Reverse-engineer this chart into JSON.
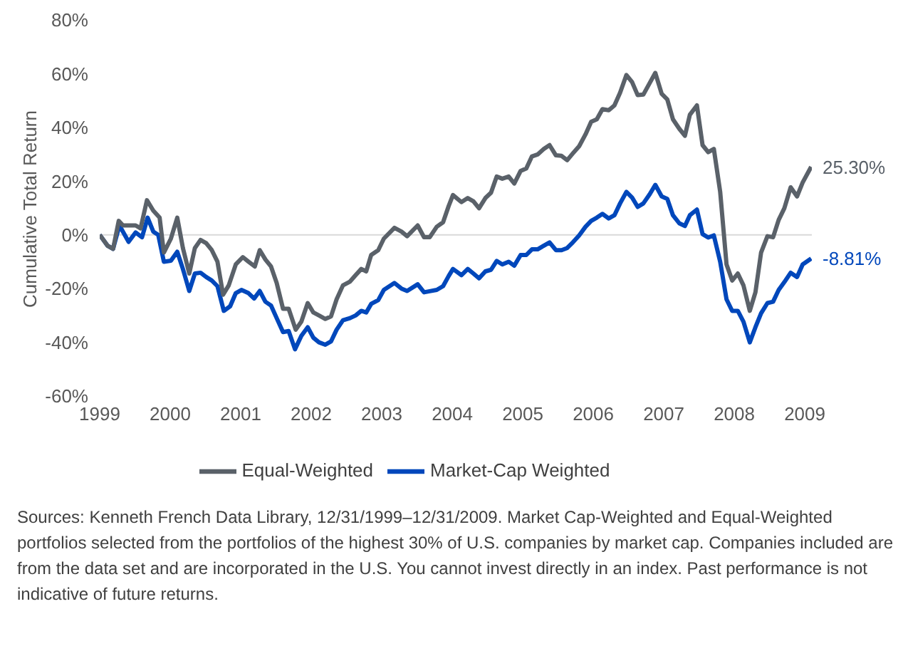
{
  "chart_data": {
    "type": "line",
    "ylabel": "Cumulative Total Return",
    "xlim": [
      1999,
      2009.1
    ],
    "xticks": [
      1999,
      2000,
      2001,
      2002,
      2003,
      2004,
      2005,
      2006,
      2007,
      2008,
      2009
    ],
    "ylim": [
      -60,
      80
    ],
    "yticks": [
      {
        "value": -60,
        "label": "-60%"
      },
      {
        "value": -40,
        "label": "-40%"
      },
      {
        "value": -20,
        "label": "-20%"
      },
      {
        "value": 0,
        "label": "0%"
      },
      {
        "value": 20,
        "label": "20%"
      },
      {
        "value": 40,
        "label": "40%"
      },
      {
        "value": 60,
        "label": "60%"
      },
      {
        "value": 80,
        "label": "80%"
      }
    ],
    "grid": false,
    "legend": "bottom",
    "marker": "none",
    "line_style": "solid",
    "ref_lines": [
      {
        "axis": "y",
        "value": 0,
        "color": "#d9d9d9"
      }
    ],
    "series": [
      {
        "name": "Market-Cap Weighted",
        "color": "#0047bb",
        "x": [
          1999,
          1999.11,
          1999.19,
          1999.28,
          1999.41,
          1999.51,
          1999.6,
          1999.68,
          1999.76,
          1999.83,
          1999.91,
          2000.01,
          2000.1,
          2000.18,
          2000.27,
          2000.35,
          2000.43,
          2000.51,
          2000.59,
          2000.67,
          2000.76,
          2000.85,
          2000.93,
          2001.01,
          2001.11,
          2001.19,
          2001.27,
          2001.35,
          2001.43,
          2001.51,
          2001.6,
          2001.68,
          2001.77,
          2001.86,
          2001.95,
          2002.03,
          2002.11,
          2002.2,
          2002.28,
          2002.36,
          2002.45,
          2002.55,
          2002.63,
          2002.71,
          2002.78,
          2002.85,
          2002.95,
          2003.03,
          2003.18,
          2003.28,
          2003.36,
          2003.51,
          2003.6,
          2003.68,
          2003.78,
          2003.87,
          2003.95,
          2004.01,
          2004.13,
          2004.22,
          2004.3,
          2004.38,
          2004.47,
          2004.55,
          2004.63,
          2004.71,
          2004.8,
          2004.88,
          2004.97,
          2005.05,
          2005.13,
          2005.21,
          2005.3,
          2005.38,
          2005.47,
          2005.55,
          2005.63,
          2005.71,
          2005.8,
          2005.89,
          2005.97,
          2006.05,
          2006.13,
          2006.22,
          2006.3,
          2006.38,
          2006.47,
          2006.55,
          2006.63,
          2006.71,
          2006.8,
          2006.88,
          2006.97,
          2007.05,
          2007.13,
          2007.22,
          2007.3,
          2007.37,
          2007.47,
          2007.55,
          2007.63,
          2007.71,
          2007.8,
          2007.89,
          2007.97,
          2008.05,
          2008.13,
          2008.22,
          2008.3,
          2008.38,
          2008.47,
          2008.55,
          2008.63,
          2008.71,
          2008.8,
          2008.89,
          2008.97,
          2009.09
        ],
        "values": [
          0,
          -4,
          -5.2,
          3.5,
          -2.6,
          0.9,
          -0.9,
          6.4,
          1.2,
          0,
          -10,
          -9.6,
          -6.3,
          -12.7,
          -20.9,
          -14.4,
          -14.1,
          -15.7,
          -17,
          -19.1,
          -28.3,
          -26.6,
          -21.7,
          -20.5,
          -21.7,
          -23.7,
          -20.9,
          -24.9,
          -26.3,
          -31,
          -36.2,
          -35.8,
          -42.6,
          -37.6,
          -34.4,
          -38.3,
          -40,
          -40.9,
          -39.7,
          -35.3,
          -31.8,
          -31,
          -30,
          -28.3,
          -28.9,
          -25.7,
          -24.3,
          -20.5,
          -17.9,
          -20,
          -20.9,
          -18.4,
          -21.4,
          -21,
          -20.5,
          -19.1,
          -15.3,
          -12.7,
          -15,
          -12.7,
          -14.4,
          -16.2,
          -13.6,
          -13,
          -9.7,
          -11,
          -10,
          -11.5,
          -7.5,
          -7.5,
          -5.4,
          -5.4,
          -4,
          -2.8,
          -5.7,
          -5.7,
          -4.9,
          -2.8,
          -0.2,
          3,
          5.2,
          6.4,
          7.8,
          6.1,
          7.3,
          11.7,
          16,
          13.9,
          10.4,
          11.7,
          15.1,
          18.6,
          14.3,
          13.4,
          7.3,
          4.3,
          3.3,
          7.3,
          9.4,
          0.3,
          -1,
          -0.2,
          -10,
          -24,
          -28.3,
          -28.3,
          -32.3,
          -40,
          -34.4,
          -29.2,
          -25.4,
          -24.9,
          -20.5,
          -17.6,
          -14.1,
          -15.7,
          -11,
          -8.81
        ]
      },
      {
        "name": "Equal-Weighted",
        "color": "#5a6169",
        "x": [
          1999,
          1999.11,
          1999.19,
          1999.27,
          1999.33,
          1999.51,
          1999.58,
          1999.67,
          1999.76,
          1999.85,
          1999.91,
          2000.01,
          2000.1,
          2000.18,
          2000.27,
          2000.35,
          2000.43,
          2000.51,
          2000.59,
          2000.67,
          2000.75,
          2000.83,
          2000.93,
          2001.03,
          2001.11,
          2001.2,
          2001.27,
          2001.35,
          2001.43,
          2001.51,
          2001.6,
          2001.68,
          2001.78,
          2001.86,
          2001.95,
          2002.03,
          2002.11,
          2002.2,
          2002.28,
          2002.36,
          2002.45,
          2002.55,
          2002.63,
          2002.71,
          2002.78,
          2002.85,
          2002.95,
          2003.03,
          2003.18,
          2003.28,
          2003.36,
          2003.51,
          2003.6,
          2003.68,
          2003.78,
          2003.87,
          2003.95,
          2004.01,
          2004.13,
          2004.22,
          2004.3,
          2004.38,
          2004.47,
          2004.55,
          2004.63,
          2004.71,
          2004.8,
          2004.88,
          2004.97,
          2005.05,
          2005.13,
          2005.21,
          2005.3,
          2005.38,
          2005.47,
          2005.55,
          2005.63,
          2005.71,
          2005.8,
          2005.89,
          2005.97,
          2006.05,
          2006.13,
          2006.22,
          2006.3,
          2006.38,
          2006.47,
          2006.55,
          2006.63,
          2006.71,
          2006.8,
          2006.88,
          2006.97,
          2007.05,
          2007.13,
          2007.22,
          2007.3,
          2007.37,
          2007.47,
          2007.55,
          2007.63,
          2007.71,
          2007.8,
          2007.89,
          2007.97,
          2008.05,
          2008.13,
          2008.22,
          2008.3,
          2008.38,
          2008.47,
          2008.55,
          2008.63,
          2008.71,
          2008.8,
          2008.89,
          2008.97,
          2009.09
        ],
        "values": [
          0,
          -4,
          -5.2,
          5.2,
          3.5,
          3.5,
          2.4,
          12.9,
          9,
          6.4,
          -6.6,
          -1.4,
          6.4,
          -4.9,
          -14.4,
          -4.9,
          -1.9,
          -3.1,
          -5.7,
          -10,
          -22.3,
          -18.8,
          -11,
          -8.3,
          -10,
          -11.8,
          -5.7,
          -9.2,
          -11.8,
          -17.9,
          -27.5,
          -27.5,
          -35.3,
          -32.3,
          -25.4,
          -28.9,
          -30,
          -31.3,
          -30.4,
          -24,
          -18.8,
          -17.4,
          -15,
          -12.7,
          -13.6,
          -7.5,
          -5.7,
          -1.4,
          2.6,
          1.2,
          -0.5,
          3.5,
          -0.9,
          -0.9,
          3,
          4.7,
          10.8,
          14.8,
          12.2,
          13.7,
          12.5,
          9.9,
          13.7,
          15.7,
          21.7,
          20.9,
          21.7,
          19.1,
          23.8,
          24.7,
          29.2,
          29.9,
          32,
          33.4,
          29.6,
          29.4,
          27.8,
          30.3,
          33,
          37.4,
          42.1,
          43,
          46.8,
          46.4,
          48.2,
          52.9,
          59.5,
          56.9,
          52,
          52.2,
          56.5,
          60.3,
          52.5,
          50.4,
          43,
          39.5,
          36.9,
          44.7,
          48.2,
          33.4,
          30.8,
          32,
          16,
          -11,
          -17,
          -14.4,
          -18.8,
          -28.3,
          -21.4,
          -6.6,
          -0.5,
          -0.9,
          5.6,
          9.9,
          17.7,
          14.3,
          19.5,
          25.3
        ]
      }
    ],
    "annotations": [
      {
        "text": "25.30%",
        "x": 2009.09,
        "y": 25.3
      },
      {
        "text": "-8.81%",
        "x": 2009.09,
        "y": -8.81
      },
      "Sources: Kenneth French Data Library, 12/31/1999–12/31/2009. Market Cap-Weighted and Equal-Weighted portfolios selected from the portfolios of the highest 30% of U.S. companies by market cap. Companies included are from the data set and are incorporated in the U.S. You cannot invest directly in an index. Past performance is not indicative of future returns."
    ]
  }
}
